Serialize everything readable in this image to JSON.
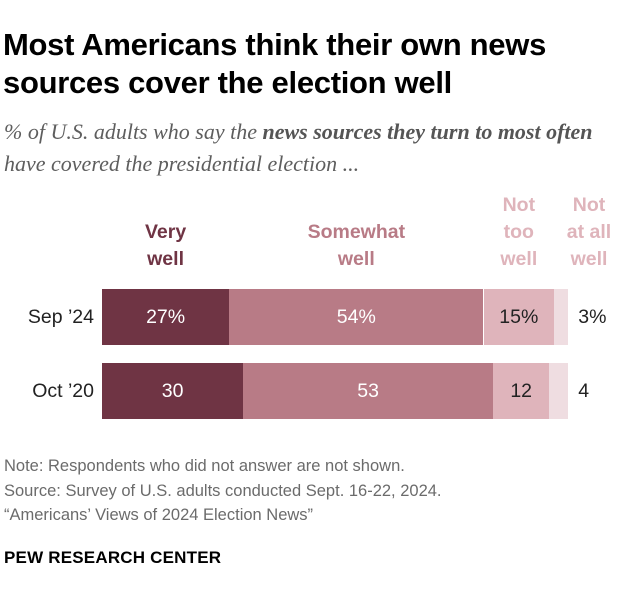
{
  "title": "Most Americans think their own news sources cover the election well",
  "subtitle": {
    "part1": "% of U.S. adults who say the ",
    "bold": "news sources they turn to most often",
    "part2": " have covered the presidential election ..."
  },
  "chart_data": {
    "type": "bar",
    "orientation": "horizontal-stacked",
    "title": "Most Americans think their own news sources cover the election well",
    "categories": [
      "Sep ’24",
      "Oct ’20"
    ],
    "series": [
      {
        "name": "Very\nwell",
        "values": [
          27,
          30
        ],
        "labels": [
          "27%",
          "30"
        ],
        "color": "#6f3444",
        "text_color": "#ffffff"
      },
      {
        "name": "Somewhat\nwell",
        "values": [
          54,
          53
        ],
        "labels": [
          "54%",
          "53"
        ],
        "color": "#b87b86",
        "text_color": "#ffffff"
      },
      {
        "name": "Not\ntoo\nwell",
        "values": [
          15,
          12
        ],
        "labels": [
          "15%",
          "12"
        ],
        "color": "#dfb4bb",
        "text_color": "#222222"
      },
      {
        "name": "Not\nat all\nwell",
        "values": [
          3,
          4
        ],
        "labels": [
          "3%",
          "4"
        ],
        "color": "#efdde1",
        "text_color": "#222222"
      }
    ],
    "xlim": [
      0,
      100
    ],
    "legend": "top"
  },
  "legend_colors": [
    "#6f3444",
    "#b87b86",
    "#dfb4bb",
    "#dfb4bb"
  ],
  "notes": {
    "note": "Note: Respondents who did not answer are not shown.",
    "source": "Source: Survey of U.S. adults conducted Sept. 16-22, 2024.",
    "report": "“Americans’ Views of 2024 Election News”"
  },
  "brand": "PEW RESEARCH CENTER"
}
